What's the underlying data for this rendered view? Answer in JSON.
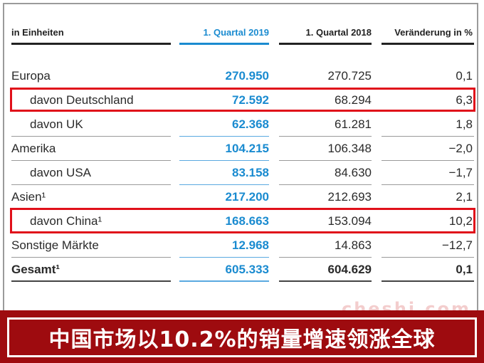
{
  "table": {
    "headers": {
      "label": "in Einheiten",
      "q2019": "1. Quartal 2019",
      "q2018": "1. Quartal 2018",
      "change": "Veränderung in %"
    },
    "rows": [
      {
        "label": "Europa",
        "q2019": "270.950",
        "q2018": "270.725",
        "change": "0,1"
      },
      {
        "label": "davon Deutschland",
        "q2019": "72.592",
        "q2018": "68.294",
        "change": "6,3"
      },
      {
        "label": "davon UK",
        "q2019": "62.368",
        "q2018": "61.281",
        "change": "1,8"
      },
      {
        "label": "Amerika",
        "q2019": "104.215",
        "q2018": "106.348",
        "change": "−2,0"
      },
      {
        "label": "davon USA",
        "q2019": "83.158",
        "q2018": "84.630",
        "change": "−1,7"
      },
      {
        "label": "Asien¹",
        "q2019": "217.200",
        "q2018": "212.693",
        "change": "2,1"
      },
      {
        "label": "davon China¹",
        "q2019": "168.663",
        "q2018": "153.094",
        "change": "10,2"
      },
      {
        "label": "Sonstige Märkte",
        "q2019": "12.968",
        "q2018": "14.863",
        "change": "−12,7"
      },
      {
        "label": "Gesamt¹",
        "q2019": "605.333",
        "q2018": "604.629",
        "change": "0,1"
      }
    ]
  },
  "banner": {
    "text": "中国市场以10.2%的销量增速领涨全球"
  },
  "watermark": "cheshi.com",
  "colors": {
    "accent": "#1a8bd0",
    "highlight": "#e0101a",
    "banner_bg": "#9e0b0f"
  }
}
